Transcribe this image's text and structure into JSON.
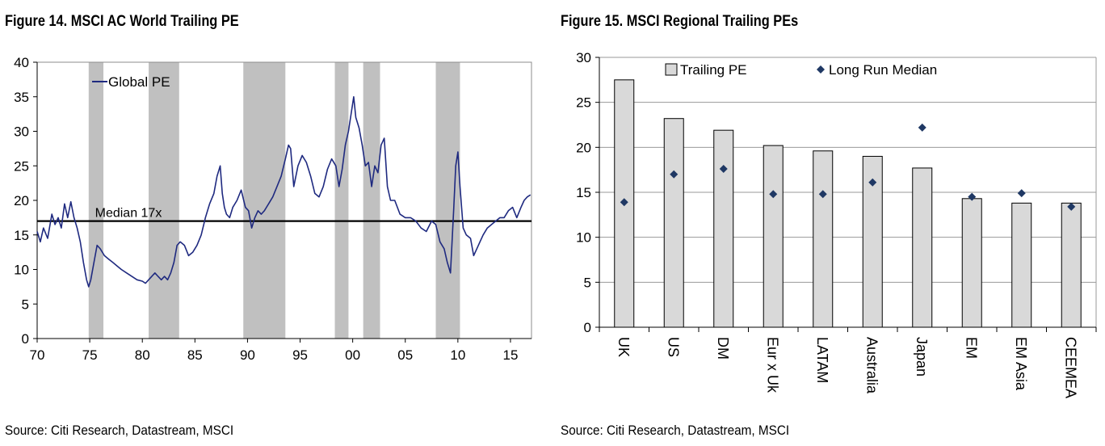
{
  "figures": [
    {
      "title": "Figure 14. MSCI AC World Trailing PE",
      "source": "Source: Citi Research, Datastream, MSCI"
    },
    {
      "title": "Figure 15. MSCI Regional Trailing PEs",
      "source": "Source: Citi Research, Datastream, MSCI"
    }
  ],
  "chart_data": [
    {
      "type": "line",
      "title": "Figure 14. MSCI AC World Trailing PE",
      "xlabel": "",
      "ylabel": "",
      "xlim": [
        1970,
        2017
      ],
      "ylim": [
        0,
        40
      ],
      "x_ticks": [
        1970,
        1975,
        1980,
        1985,
        1990,
        1995,
        2000,
        2005,
        2010,
        2015
      ],
      "x_tick_labels": [
        "70",
        "75",
        "80",
        "85",
        "90",
        "95",
        "00",
        "05",
        "10",
        "15"
      ],
      "y_ticks": [
        0,
        5,
        10,
        15,
        20,
        25,
        30,
        35,
        40
      ],
      "y_tick_labels": [
        "0",
        "5",
        "10",
        "15",
        "20",
        "25",
        "30",
        "35",
        "40"
      ],
      "grid": false,
      "legend": [
        "Global PE"
      ],
      "legend_position": "top-left",
      "series": [
        {
          "name": "Global PE",
          "color": "#1f2a80",
          "x": [
            1970.0,
            1970.3,
            1970.6,
            1971.0,
            1971.4,
            1971.7,
            1972.0,
            1972.3,
            1972.6,
            1972.9,
            1973.2,
            1973.5,
            1973.8,
            1974.1,
            1974.4,
            1974.7,
            1974.9,
            1975.1,
            1975.4,
            1975.7,
            1976.0,
            1976.4,
            1976.8,
            1977.2,
            1977.6,
            1978.0,
            1978.5,
            1979.0,
            1979.5,
            1980.0,
            1980.3,
            1980.6,
            1980.9,
            1981.2,
            1981.5,
            1981.8,
            1982.1,
            1982.4,
            1982.7,
            1983.0,
            1983.3,
            1983.6,
            1984.0,
            1984.4,
            1984.8,
            1985.2,
            1985.6,
            1986.0,
            1986.4,
            1986.8,
            1987.1,
            1987.4,
            1987.6,
            1987.8,
            1988.0,
            1988.3,
            1988.6,
            1989.0,
            1989.4,
            1989.8,
            1990.1,
            1990.4,
            1990.7,
            1991.0,
            1991.3,
            1991.6,
            1992.0,
            1992.4,
            1992.8,
            1993.2,
            1993.6,
            1993.9,
            1994.1,
            1994.4,
            1994.8,
            1995.2,
            1995.6,
            1996.0,
            1996.4,
            1996.8,
            1997.2,
            1997.6,
            1998.0,
            1998.4,
            1998.7,
            1999.0,
            1999.3,
            1999.6,
            1999.9,
            2000.1,
            2000.3,
            2000.6,
            2000.9,
            2001.2,
            2001.5,
            2001.8,
            2002.1,
            2002.4,
            2002.7,
            2003.0,
            2003.3,
            2003.6,
            2004.0,
            2004.5,
            2005.0,
            2005.5,
            2006.0,
            2006.5,
            2007.0,
            2007.5,
            2007.9,
            2008.3,
            2008.7,
            2009.0,
            2009.3,
            2009.6,
            2009.8,
            2010.0,
            2010.2,
            2010.5,
            2010.8,
            2011.2,
            2011.5,
            2011.8,
            2012.1,
            2012.4,
            2012.8,
            2013.2,
            2013.6,
            2014.0,
            2014.4,
            2014.8,
            2015.2,
            2015.6,
            2016.0,
            2016.3,
            2016.6,
            2016.9
          ],
          "values": [
            15.5,
            14.0,
            16.0,
            14.5,
            18.0,
            16.5,
            17.5,
            16.0,
            19.5,
            17.5,
            19.8,
            17.5,
            16.0,
            14.0,
            11.0,
            8.5,
            7.5,
            8.5,
            11.0,
            13.5,
            13.0,
            12.0,
            11.5,
            11.0,
            10.5,
            10.0,
            9.5,
            9.0,
            8.5,
            8.3,
            8.0,
            8.5,
            9.0,
            9.5,
            9.0,
            8.5,
            9.0,
            8.5,
            9.5,
            11.0,
            13.5,
            14.0,
            13.5,
            12.0,
            12.5,
            13.5,
            15.0,
            17.5,
            19.5,
            21.0,
            23.5,
            25.0,
            21.0,
            19.0,
            18.0,
            17.5,
            19.0,
            20.0,
            21.5,
            19.0,
            18.5,
            16.0,
            17.5,
            18.5,
            18.0,
            18.5,
            19.5,
            20.5,
            22.0,
            23.5,
            26.0,
            28.0,
            27.5,
            22.0,
            25.0,
            26.5,
            25.5,
            23.5,
            21.0,
            20.5,
            22.0,
            24.5,
            26.0,
            25.0,
            22.0,
            24.5,
            28.0,
            30.0,
            33.0,
            35.0,
            32.0,
            30.5,
            28.0,
            25.0,
            25.5,
            22.0,
            25.0,
            24.0,
            28.0,
            29.0,
            22.0,
            20.0,
            20.0,
            18.0,
            17.5,
            17.5,
            17.0,
            16.0,
            15.5,
            17.0,
            16.5,
            14.0,
            13.0,
            11.0,
            9.5,
            18.5,
            25.0,
            27.0,
            22.0,
            16.0,
            15.0,
            14.5,
            12.0,
            13.0,
            14.0,
            15.0,
            16.0,
            16.5,
            17.0,
            17.5,
            17.5,
            18.5,
            19.0,
            17.5,
            19.0,
            20.0,
            20.5,
            20.8
          ]
        }
      ],
      "reference_line": {
        "value": 17,
        "label": "Median 17x"
      },
      "recession_bands": [
        [
          1974.9,
          1976.3
        ],
        [
          1980.6,
          1983.5
        ],
        [
          1989.6,
          1993.6
        ],
        [
          1998.3,
          1999.6
        ],
        [
          2001.0,
          2002.6
        ],
        [
          2007.9,
          2010.2
        ]
      ]
    },
    {
      "type": "bar",
      "title": "Figure 15. MSCI Regional Trailing PEs",
      "xlabel": "",
      "ylabel": "",
      "ylim": [
        0,
        30
      ],
      "y_ticks": [
        0,
        5,
        10,
        15,
        20,
        25,
        30
      ],
      "y_tick_labels": [
        "0",
        "5",
        "10",
        "15",
        "20",
        "25",
        "30"
      ],
      "grid": true,
      "legend": [
        "Trailing PE",
        "Long Run Median"
      ],
      "legend_position": "top",
      "categories": [
        "UK",
        "US",
        "DM",
        "Eur x Uk",
        "LATAM",
        "Australia",
        "Japan",
        "EM",
        "EM Asia",
        "CEEMEA"
      ],
      "series": [
        {
          "name": "Trailing PE",
          "kind": "bar",
          "color": "#d9d9d9",
          "values": [
            27.5,
            23.2,
            21.9,
            20.2,
            19.6,
            19.0,
            17.7,
            14.3,
            13.8,
            13.8
          ]
        },
        {
          "name": "Long Run Median",
          "kind": "marker",
          "color": "#1f3864",
          "values": [
            13.9,
            17.0,
            17.6,
            14.8,
            14.8,
            16.1,
            22.2,
            14.5,
            14.9,
            13.4
          ]
        }
      ]
    }
  ]
}
